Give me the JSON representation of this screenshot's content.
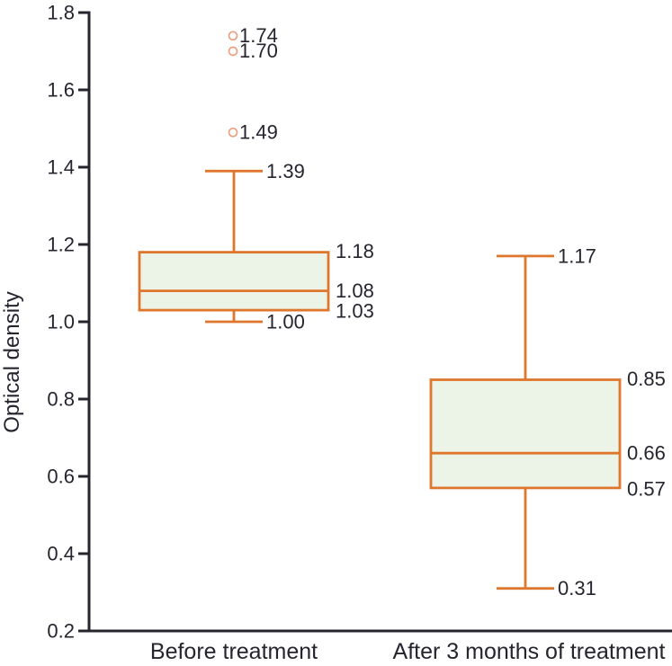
{
  "chart_data": {
    "type": "box",
    "title": "",
    "xlabel": "",
    "ylabel": "Optical density",
    "ylim": [
      0.2,
      1.8
    ],
    "yticks": [
      0.2,
      0.4,
      0.6,
      0.8,
      1.0,
      1.2,
      1.4,
      1.6,
      1.8
    ],
    "grid": false,
    "legend": "none",
    "categories": [
      "Before treatment",
      "After 3 months of treatment"
    ],
    "series": [
      {
        "name": "Before treatment",
        "whisker_low": 1.0,
        "q1": 1.03,
        "median": 1.08,
        "q3": 1.18,
        "whisker_high": 1.39,
        "outliers": [
          1.49,
          1.7,
          1.74
        ]
      },
      {
        "name": "After 3 months of treatment",
        "whisker_low": 0.31,
        "q1": 0.57,
        "median": 0.66,
        "q3": 0.85,
        "whisker_high": 1.17,
        "outliers": []
      }
    ],
    "colors": {
      "box_stroke": "#df762d",
      "box_fill": "#ecf3e7",
      "median_stroke": "#df762d",
      "whisker_stroke": "#df762d",
      "outlier_stroke": "#eca082",
      "axis": "#27262f",
      "text": "#26252e"
    }
  }
}
